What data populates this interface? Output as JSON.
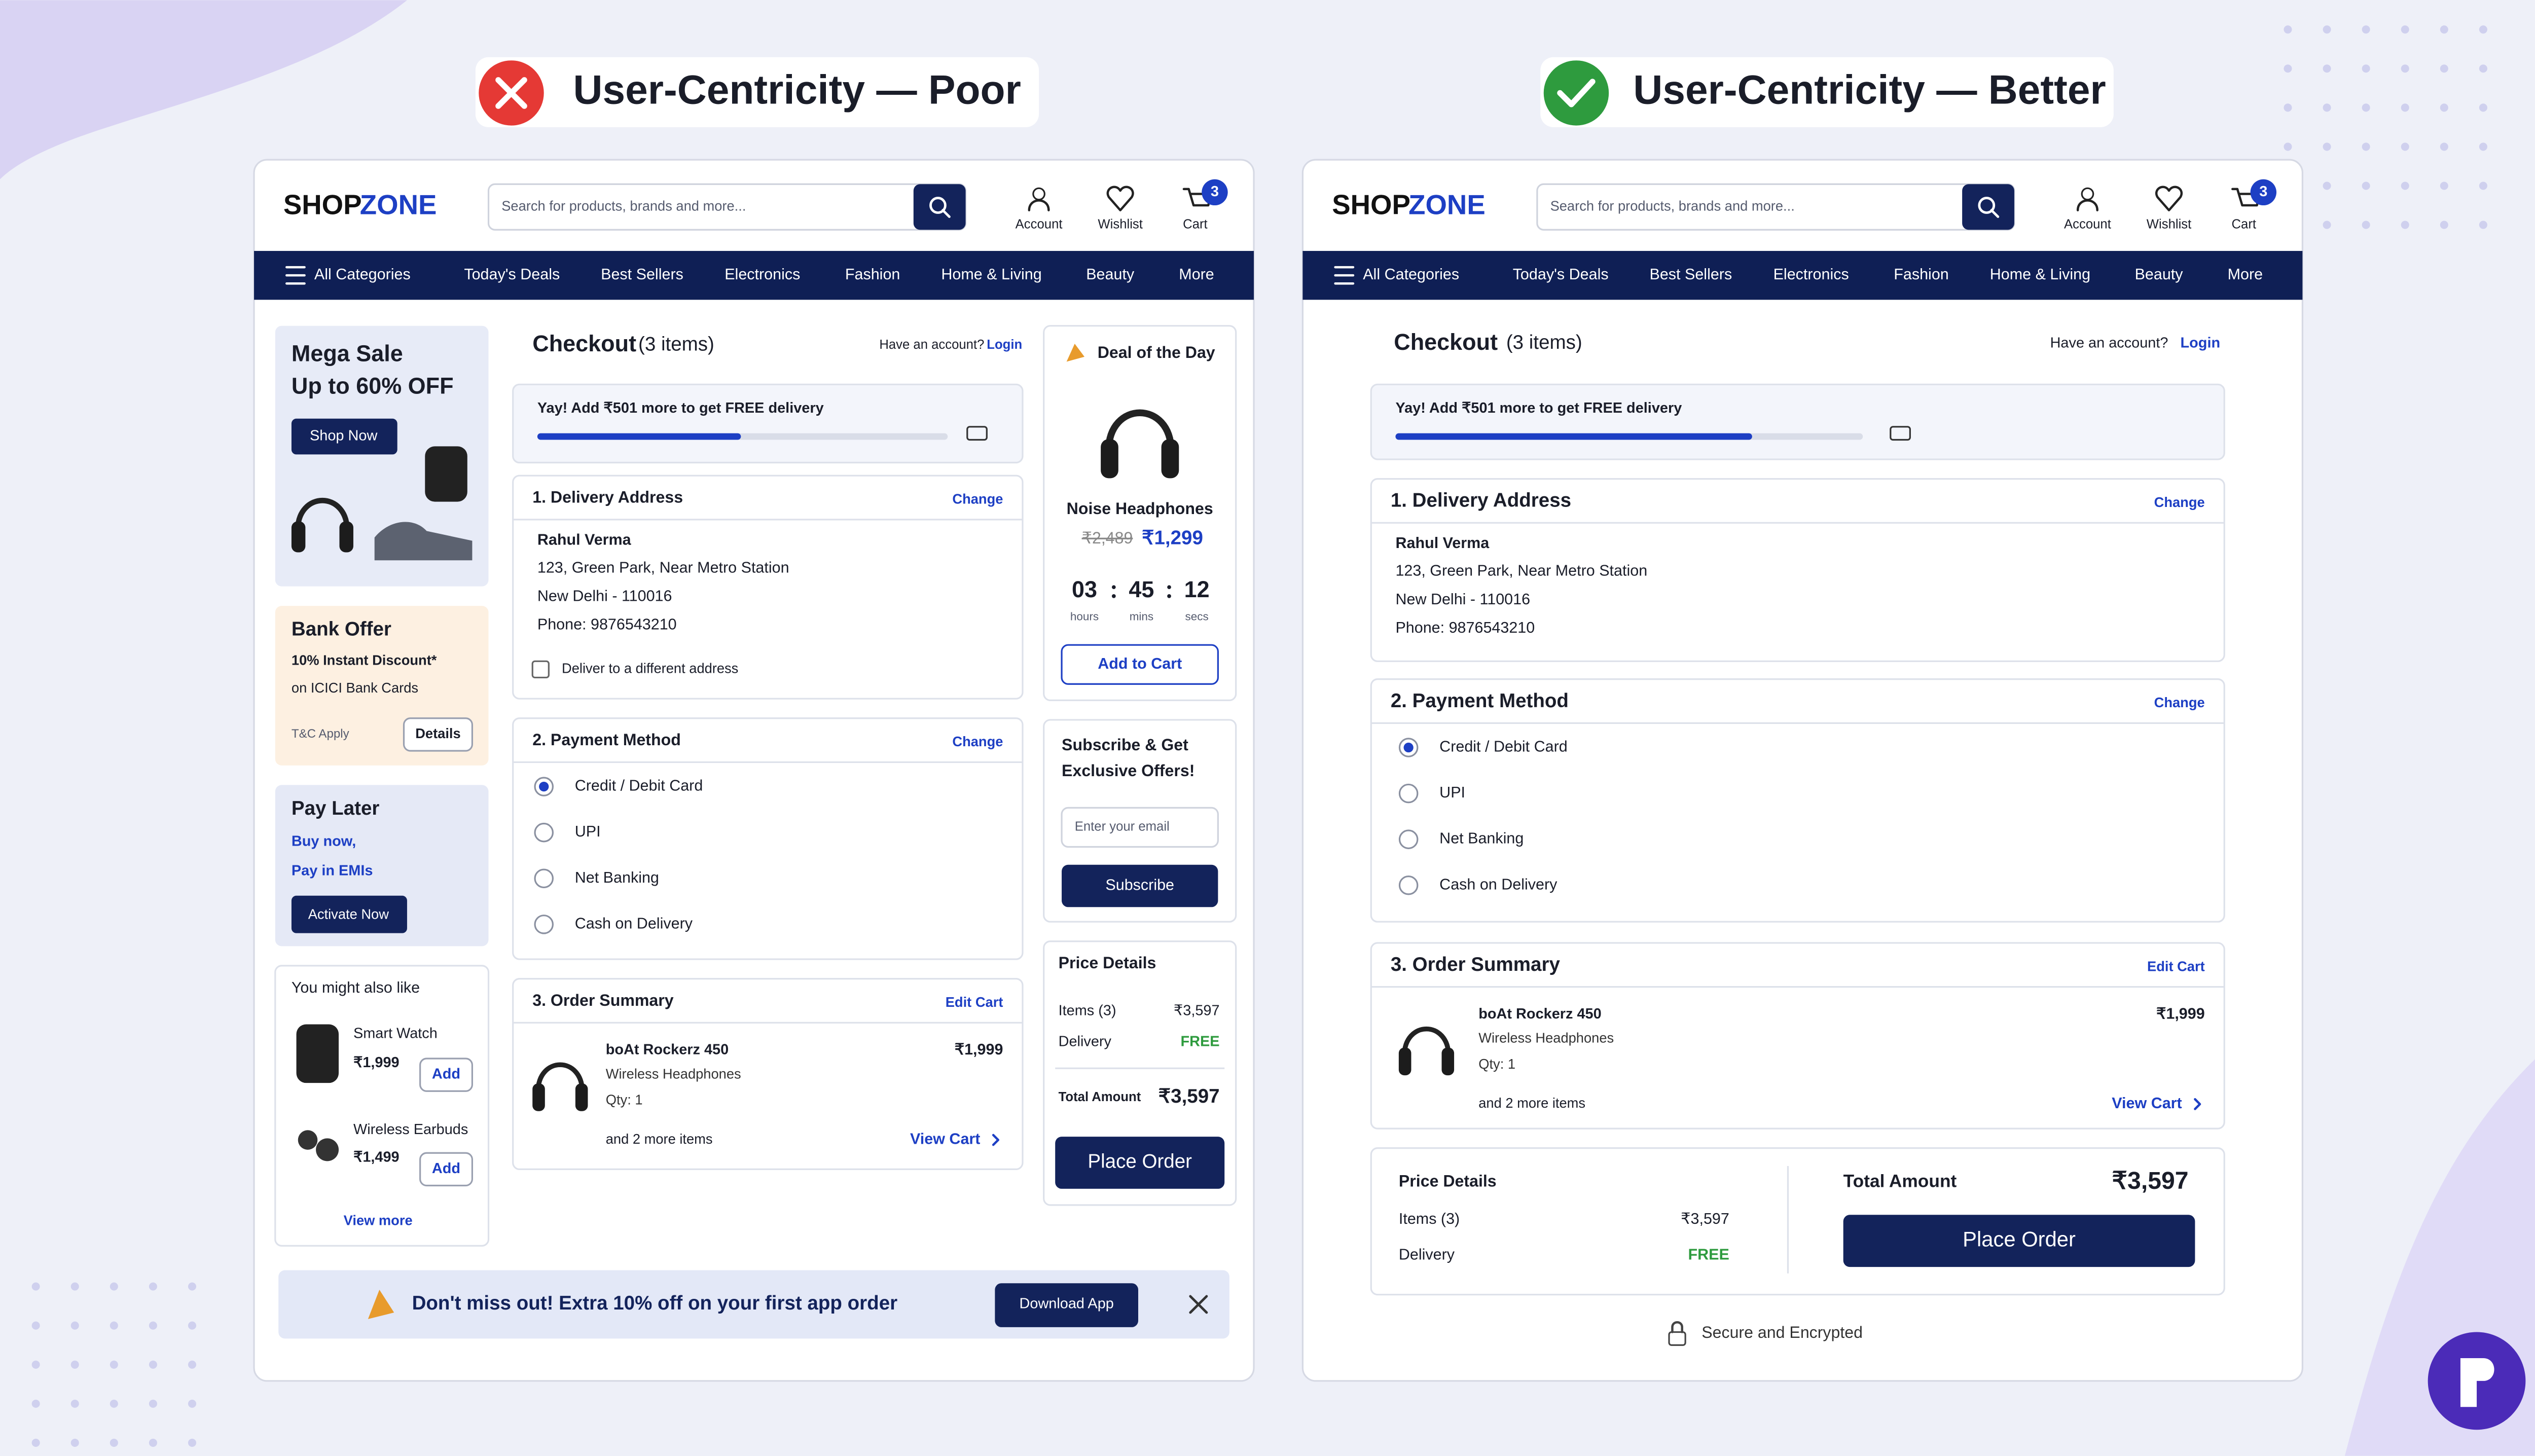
{
  "left_title": "User-Centricity — Poor",
  "right_title": "User-Centricity — Better",
  "header": {
    "logo_primary": "SHOP",
    "logo_accent": "ZONE",
    "search_placeholder": "Search for products, brands and more...",
    "account": "Account",
    "wishlist": "Wishlist",
    "cart": "Cart",
    "cart_count": "3"
  },
  "nav": [
    "All Categories",
    "Today's Deals",
    "Best Sellers",
    "Electronics",
    "Fashion",
    "Home & Living",
    "Beauty",
    "More"
  ],
  "checkout": {
    "title": "Checkout",
    "item_count": "(3 items)",
    "account_prompt": "Have an account?",
    "login": "Login",
    "delivery_banner": "Yay! Add ₹501 more to get FREE delivery",
    "delivery": {
      "heading": "1. Delivery Address",
      "action": "Change",
      "name": "Rahul Verma",
      "lines": [
        "123, Green Park, Near Metro Station",
        "New Delhi - 110016",
        "Phone: 9876543210"
      ],
      "alternate": "Deliver to a different address"
    },
    "payment": {
      "heading": "2. Payment Method",
      "action": "Change",
      "options": [
        "Credit / Debit Card",
        "UPI",
        "Net Banking",
        "Cash on Delivery"
      ]
    },
    "summary": {
      "heading": "3. Order Summary",
      "action": "Edit Cart",
      "product": "boAt Rockerz 450",
      "description": "Wireless Headphones",
      "quantity": "Qty: 1",
      "price": "₹1,999",
      "more_items": "and 2 more items",
      "view_cart": "View Cart"
    },
    "price": {
      "heading": "Price Details",
      "items_label": "Items (3)",
      "items_value": "₹3,597",
      "delivery_label": "Delivery",
      "delivery_value": "FREE",
      "total_label": "Total Amount",
      "total_value": "₹3,597",
      "place_order": "Place Order"
    }
  },
  "poor_extras": {
    "mega_sale": {
      "title": "Mega Sale",
      "subtitle": "Up to 60% OFF",
      "button": "Shop Now"
    },
    "bank_offer": {
      "title": "Bank Offer",
      "discount": "10% Instant Discount*",
      "detail": "on ICICI Bank Cards",
      "terms": "T&C Apply",
      "button": "Details"
    },
    "pay_later": {
      "title": "Pay Later",
      "line1": "Buy now,",
      "line2": "Pay in EMIs",
      "button": "Activate Now"
    },
    "recommendations": {
      "heading": "You might also like",
      "items": [
        {
          "name": "Smart Watch",
          "price": "₹1,999",
          "button": "Add"
        },
        {
          "name": "Wireless Earbuds",
          "price": "₹1,499",
          "button": "Add"
        }
      ],
      "view_more": "View more"
    },
    "deal": {
      "title": "Deal of the Day",
      "product": "Noise Headphones",
      "old_price": "₹2,489",
      "price": "₹1,299",
      "timer": [
        {
          "value": "03",
          "unit": "hours"
        },
        {
          "value": "45",
          "unit": "mins"
        },
        {
          "value": "12",
          "unit": "secs"
        }
      ],
      "button": "Add to Cart"
    },
    "subscribe": {
      "line1": "Subscribe & Get",
      "line2": "Exclusive Offers!",
      "placeholder": "Enter your email",
      "button": "Subscribe"
    },
    "app_banner": {
      "text": "Don't miss out! Extra 10% off on your first app order",
      "button": "Download App"
    }
  },
  "better_extras": {
    "secure": "Secure and Encrypted"
  }
}
